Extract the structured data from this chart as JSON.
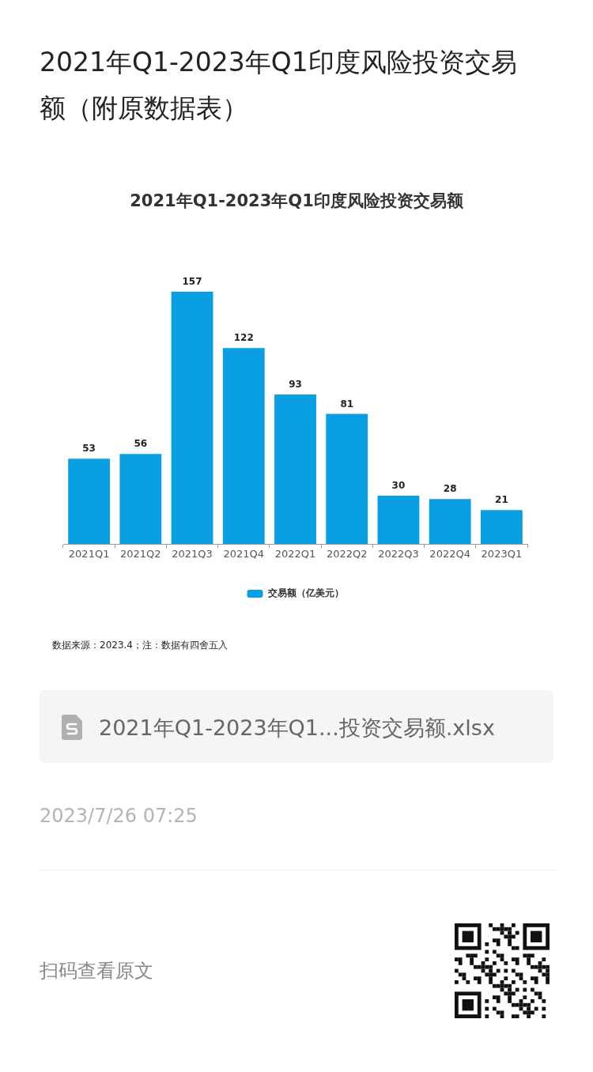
{
  "chart_data": {
    "type": "bar",
    "title": "2021年Q1-2023年Q1印度风险投资交易额（附原数据表）",
    "subtitle": "2021年Q1-2023年Q1印度风险投资交易额",
    "categories": [
      "2021Q1",
      "2021Q2",
      "2021Q3",
      "2021Q4",
      "2022Q1",
      "2022Q2",
      "2022Q3",
      "2022Q4",
      "2023Q1"
    ],
    "series": [
      {
        "name": "交易额（亿美元）",
        "color": "#0a9fe3",
        "values": [
          53,
          56,
          157,
          122,
          93,
          81,
          30,
          28,
          21
        ]
      }
    ],
    "data_labels": true,
    "legend": "bottom",
    "annotations": [
      "数据来源：2023.4；注：数据有四舍五入",
      "2021年Q1-2023年Q1...投资交易额.xlsx",
      "2023/7/26 07:25",
      "扫码查看原文"
    ]
  }
}
